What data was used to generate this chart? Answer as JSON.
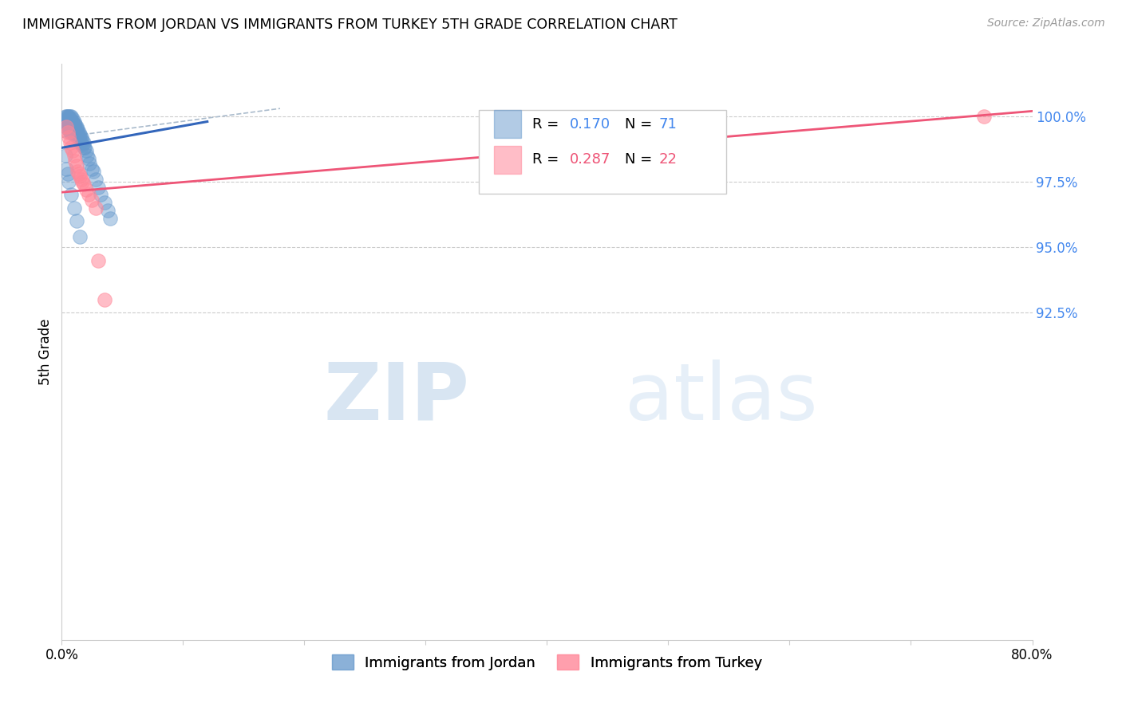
{
  "title": "IMMIGRANTS FROM JORDAN VS IMMIGRANTS FROM TURKEY 5TH GRADE CORRELATION CHART",
  "source": "Source: ZipAtlas.com",
  "ylabel": "5th Grade",
  "xlim": [
    0.0,
    0.8
  ],
  "ylim": [
    80.0,
    102.0
  ],
  "jordan_color": "#6699CC",
  "turkey_color": "#FF8899",
  "jordan_line_color": "#3366BB",
  "turkey_line_color": "#EE5577",
  "ref_line_color": "#AABBCC",
  "jordan_R": "0.170",
  "jordan_N": "71",
  "turkey_R": "0.287",
  "turkey_N": "22",
  "legend_label_jordan": "Immigrants from Jordan",
  "legend_label_turkey": "Immigrants from Turkey",
  "watermark_zip": "ZIP",
  "watermark_atlas": "atlas",
  "jordan_points_x": [
    0.003,
    0.003,
    0.004,
    0.004,
    0.004,
    0.005,
    0.005,
    0.005,
    0.005,
    0.005,
    0.006,
    0.006,
    0.006,
    0.007,
    0.007,
    0.007,
    0.007,
    0.007,
    0.008,
    0.008,
    0.008,
    0.008,
    0.009,
    0.009,
    0.009,
    0.009,
    0.01,
    0.01,
    0.01,
    0.01,
    0.011,
    0.011,
    0.011,
    0.012,
    0.012,
    0.012,
    0.013,
    0.013,
    0.013,
    0.014,
    0.014,
    0.015,
    0.015,
    0.015,
    0.016,
    0.016,
    0.017,
    0.017,
    0.018,
    0.018,
    0.019,
    0.02,
    0.021,
    0.022,
    0.023,
    0.025,
    0.026,
    0.028,
    0.03,
    0.032,
    0.035,
    0.038,
    0.04,
    0.003,
    0.004,
    0.005,
    0.006,
    0.008,
    0.01,
    0.012,
    0.015
  ],
  "jordan_points_y": [
    100.0,
    99.8,
    100.0,
    99.8,
    99.6,
    100.0,
    100.0,
    99.9,
    99.7,
    99.5,
    100.0,
    99.8,
    99.6,
    100.0,
    99.9,
    99.8,
    99.6,
    99.4,
    100.0,
    99.8,
    99.6,
    99.4,
    99.9,
    99.8,
    99.6,
    99.4,
    99.8,
    99.7,
    99.5,
    99.3,
    99.7,
    99.5,
    99.3,
    99.6,
    99.5,
    99.3,
    99.5,
    99.4,
    99.3,
    99.4,
    99.2,
    99.3,
    99.2,
    99.0,
    99.2,
    99.0,
    99.1,
    98.9,
    99.0,
    98.8,
    98.8,
    98.7,
    98.5,
    98.4,
    98.2,
    98.0,
    97.9,
    97.6,
    97.3,
    97.0,
    96.7,
    96.4,
    96.1,
    98.5,
    98.0,
    97.8,
    97.5,
    97.0,
    96.5,
    96.0,
    95.4
  ],
  "turkey_points_x": [
    0.004,
    0.005,
    0.006,
    0.007,
    0.008,
    0.009,
    0.01,
    0.011,
    0.012,
    0.013,
    0.014,
    0.015,
    0.016,
    0.017,
    0.018,
    0.02,
    0.022,
    0.025,
    0.028,
    0.03,
    0.035,
    0.76
  ],
  "turkey_points_y": [
    99.6,
    99.4,
    99.2,
    99.0,
    98.8,
    98.7,
    98.5,
    98.3,
    98.1,
    97.9,
    97.8,
    97.7,
    97.6,
    97.5,
    97.4,
    97.2,
    97.0,
    96.8,
    96.5,
    94.5,
    93.0,
    100.0
  ],
  "jordan_line_x": [
    0.0,
    0.12
  ],
  "jordan_line_y": [
    98.8,
    99.8
  ],
  "turkey_line_x": [
    0.0,
    0.8
  ],
  "turkey_line_y": [
    97.1,
    100.2
  ],
  "ref_line_x": [
    0.0,
    0.18
  ],
  "ref_line_y": [
    99.2,
    100.3
  ]
}
